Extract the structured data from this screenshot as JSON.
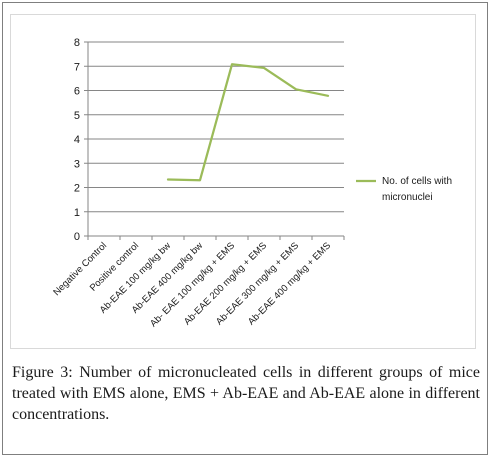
{
  "chart_data": {
    "type": "line",
    "categories": [
      "Negative Control",
      "Positive control",
      "Ab-EAE 100 mg/kg bw",
      "Ab-EAE 400 mg/kg bw",
      "Ab- EAE 100 mg/kg + EMS",
      "Ab-EAE 200 mg/kg + EMS",
      "Ab-EAE 300 mg/kg + EMS",
      "Ab-EAE 400 mg/kg + EMS"
    ],
    "series": [
      {
        "name": "No. of cells with micronuclei",
        "values": [
          null,
          null,
          2.33,
          2.3,
          7.08,
          6.93,
          6.05,
          5.78
        ],
        "color": "#9bbb59"
      }
    ],
    "ylim": [
      0,
      8
    ],
    "yticks": [
      "0",
      "1",
      "2",
      "3",
      "4",
      "5",
      "6",
      "7",
      "8"
    ],
    "grid": true,
    "legend_position": "right",
    "title": "",
    "xlabel": "",
    "ylabel": ""
  },
  "caption": {
    "label": "Figure 3:",
    "text": " Number of micronucleated cells in different groups of mice treated with EMS alone, EMS + Ab-EAE and Ab-EAE alone in different concentrations."
  }
}
